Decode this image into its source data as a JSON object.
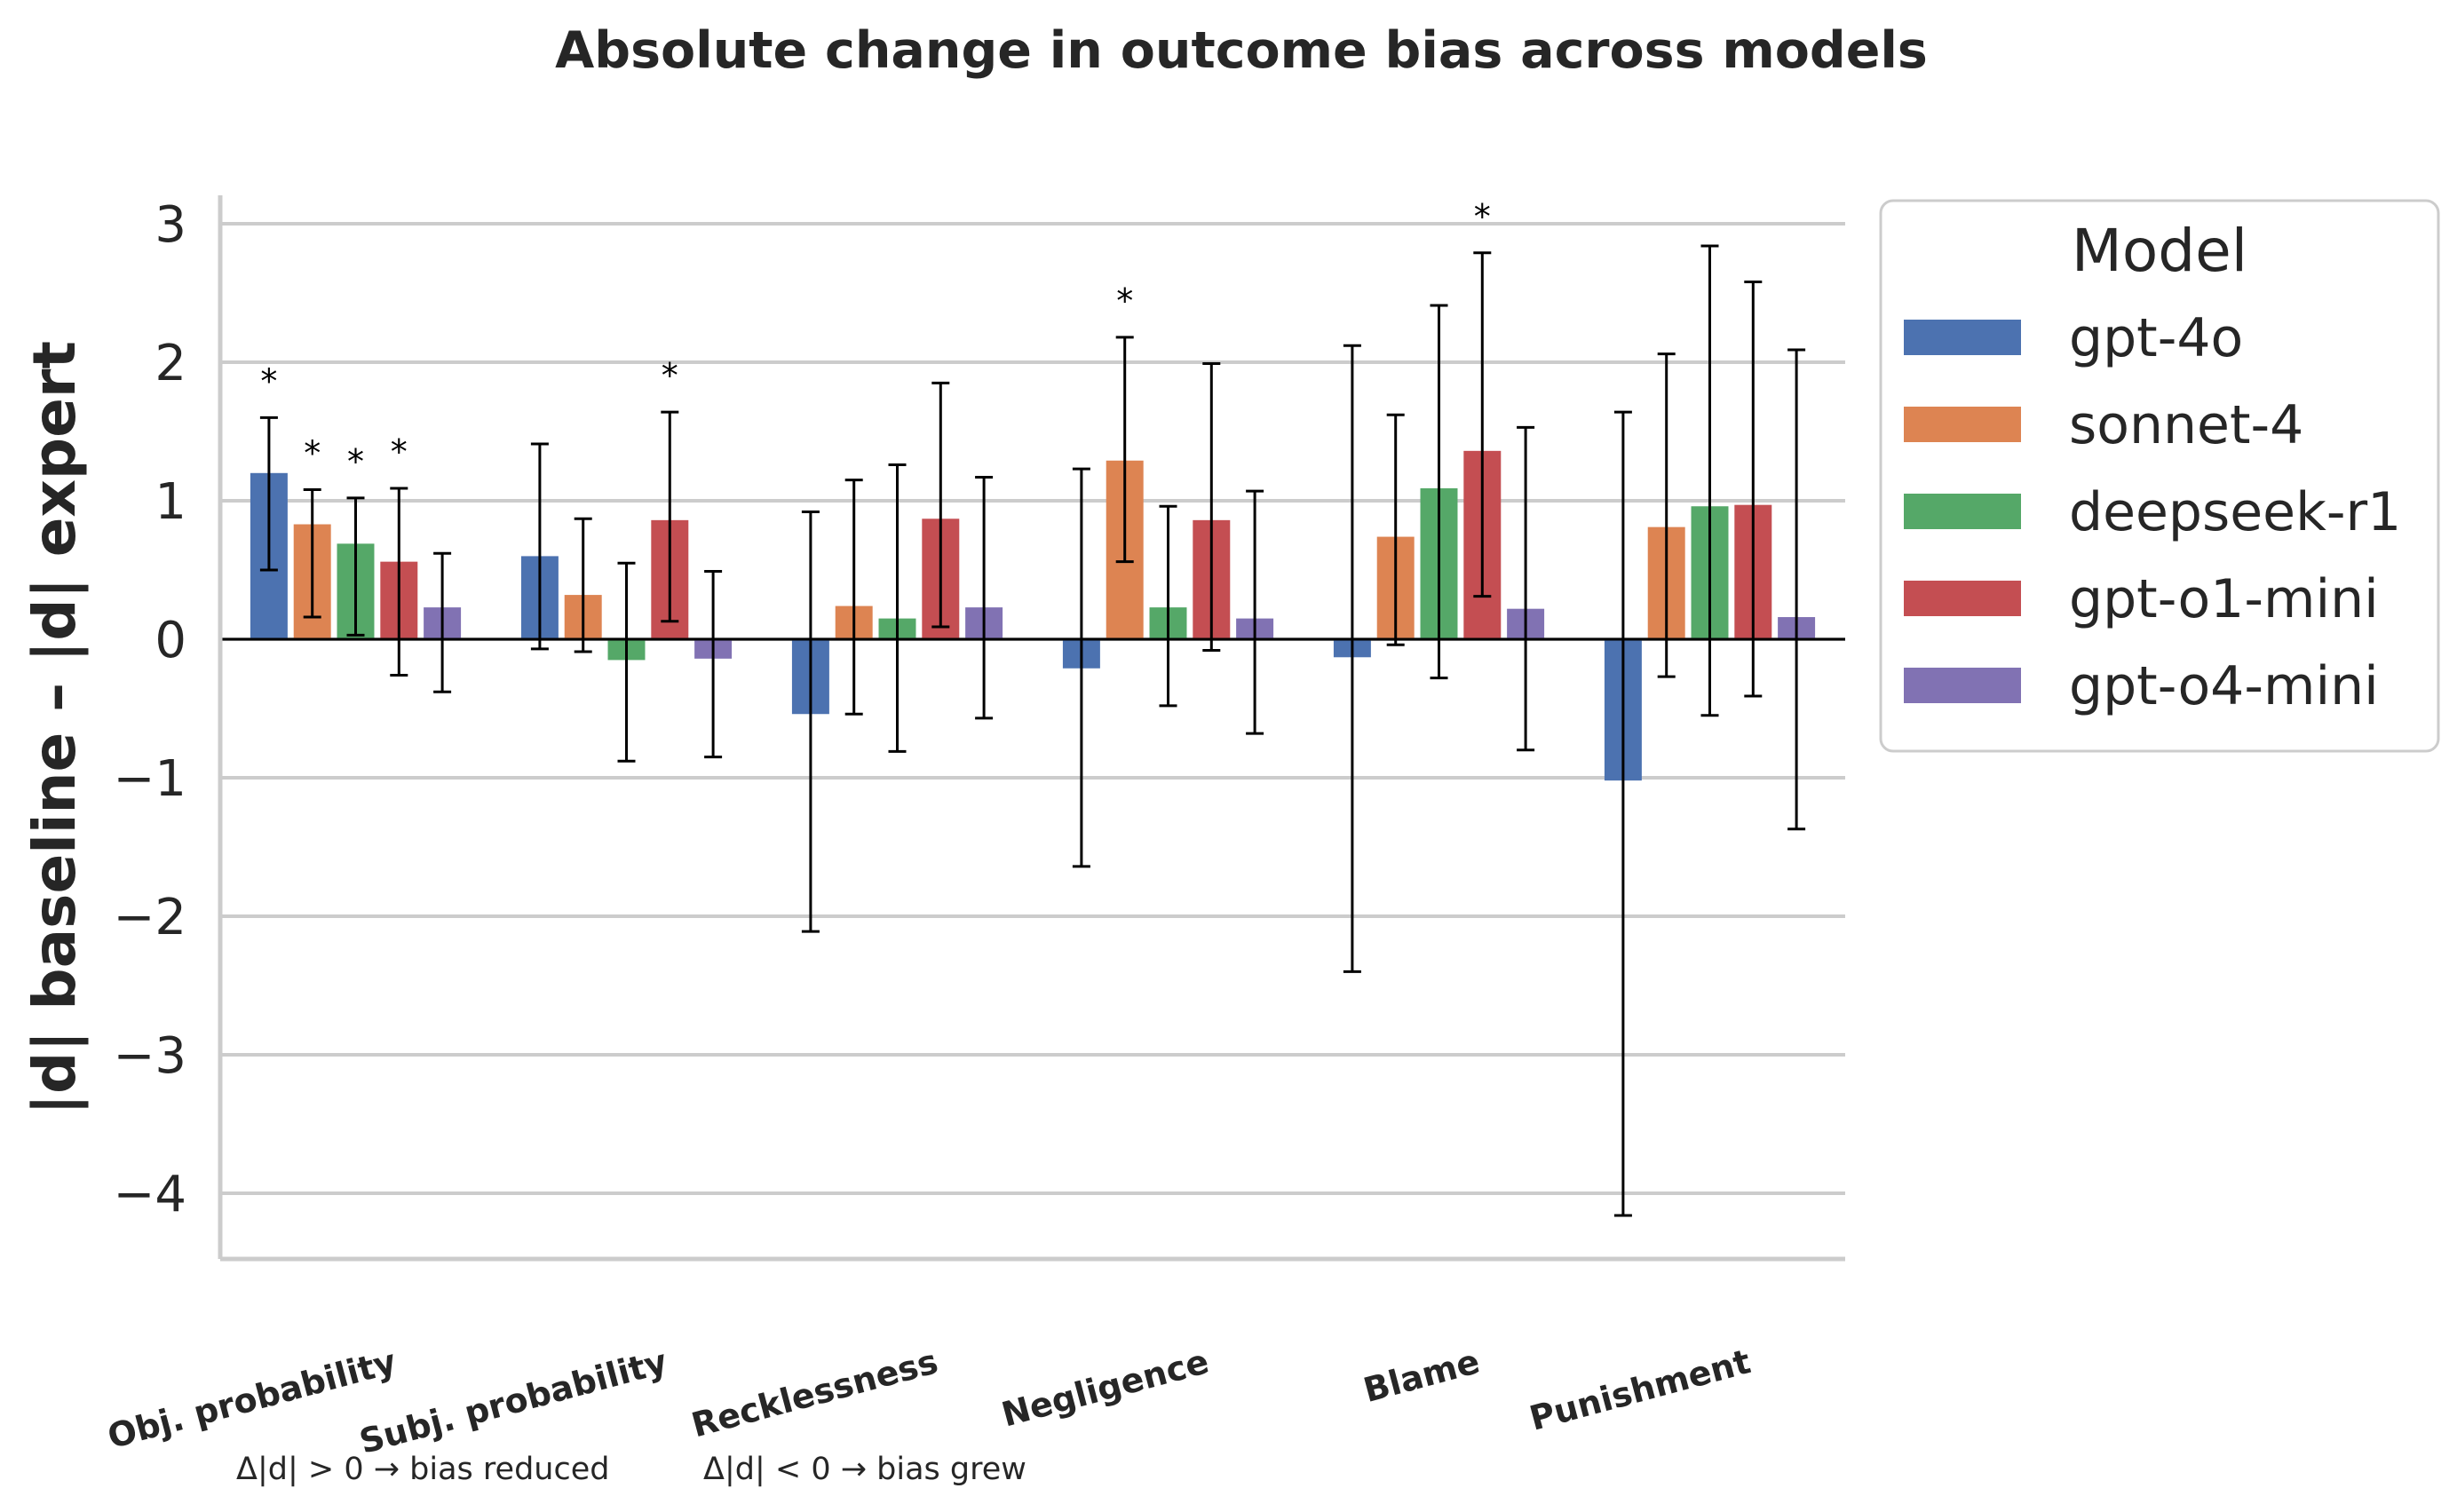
{
  "chart_data": {
    "type": "bar",
    "title": "Absolute change in outcome bias across models",
    "xlabel": "",
    "ylabel": "|d| baseline – |d| expert",
    "ylim": [
      -4.5,
      3.2
    ],
    "yticks": [
      -4,
      -3,
      -2,
      -1,
      0,
      1,
      2,
      3
    ],
    "ytick_labels": [
      "−4",
      "−3",
      "−2",
      "−1",
      "0",
      "1",
      "2",
      "3"
    ],
    "grid": true,
    "legend_title": "Model",
    "legend_position": "outside-right",
    "categories": [
      "Obj. probability",
      "Subj. probability",
      "Recklessness",
      "Negligence",
      "Blame",
      "Punishment"
    ],
    "series": [
      {
        "name": "gpt-4o",
        "color": "#4C72B0",
        "values": [
          1.2,
          0.6,
          -0.54,
          -0.21,
          -0.13,
          -1.02
        ],
        "ci_low": [
          0.5,
          -0.07,
          -2.11,
          -1.64,
          -2.4,
          -4.16
        ],
        "ci_high": [
          1.6,
          1.41,
          0.92,
          1.23,
          2.12,
          1.64
        ],
        "significant": [
          true,
          false,
          false,
          false,
          false,
          false
        ]
      },
      {
        "name": "sonnet-4",
        "color": "#DD8452",
        "values": [
          0.83,
          0.32,
          0.24,
          1.29,
          0.74,
          0.81
        ],
        "ci_low": [
          0.16,
          -0.09,
          -0.54,
          0.56,
          -0.04,
          -0.27
        ],
        "ci_high": [
          1.08,
          0.87,
          1.15,
          2.18,
          1.62,
          2.06
        ],
        "significant": [
          true,
          false,
          false,
          true,
          false,
          false
        ]
      },
      {
        "name": "deepseek-r1",
        "color": "#55A868",
        "values": [
          0.69,
          -0.15,
          0.15,
          0.23,
          1.09,
          0.96
        ],
        "ci_low": [
          0.03,
          -0.88,
          -0.81,
          -0.48,
          -0.28,
          -0.55
        ],
        "ci_high": [
          1.02,
          0.55,
          1.26,
          0.96,
          2.41,
          2.84
        ],
        "significant": [
          true,
          false,
          false,
          false,
          false,
          false
        ]
      },
      {
        "name": "gpt-o1-mini",
        "color": "#C44E52",
        "values": [
          0.56,
          0.86,
          0.87,
          0.86,
          1.36,
          0.97
        ],
        "ci_low": [
          -0.26,
          0.13,
          0.09,
          -0.08,
          0.31,
          -0.41
        ],
        "ci_high": [
          1.09,
          1.64,
          1.85,
          1.99,
          2.79,
          2.58
        ],
        "significant": [
          true,
          true,
          false,
          false,
          true,
          false
        ]
      },
      {
        "name": "gpt-o4-mini",
        "color": "#8172B3",
        "values": [
          0.23,
          -0.14,
          0.23,
          0.15,
          0.22,
          0.16
        ],
        "ci_low": [
          -0.38,
          -0.85,
          -0.57,
          -0.68,
          -0.8,
          -1.37
        ],
        "ci_high": [
          0.62,
          0.49,
          1.17,
          1.07,
          1.53,
          2.09
        ],
        "significant": [
          false,
          false,
          false,
          false,
          false,
          false
        ]
      }
    ],
    "significance_marker": "*",
    "annotations": [
      "Δ|d| > 0  →  bias reduced",
      "Δ|d| < 0  →  bias grew"
    ]
  }
}
